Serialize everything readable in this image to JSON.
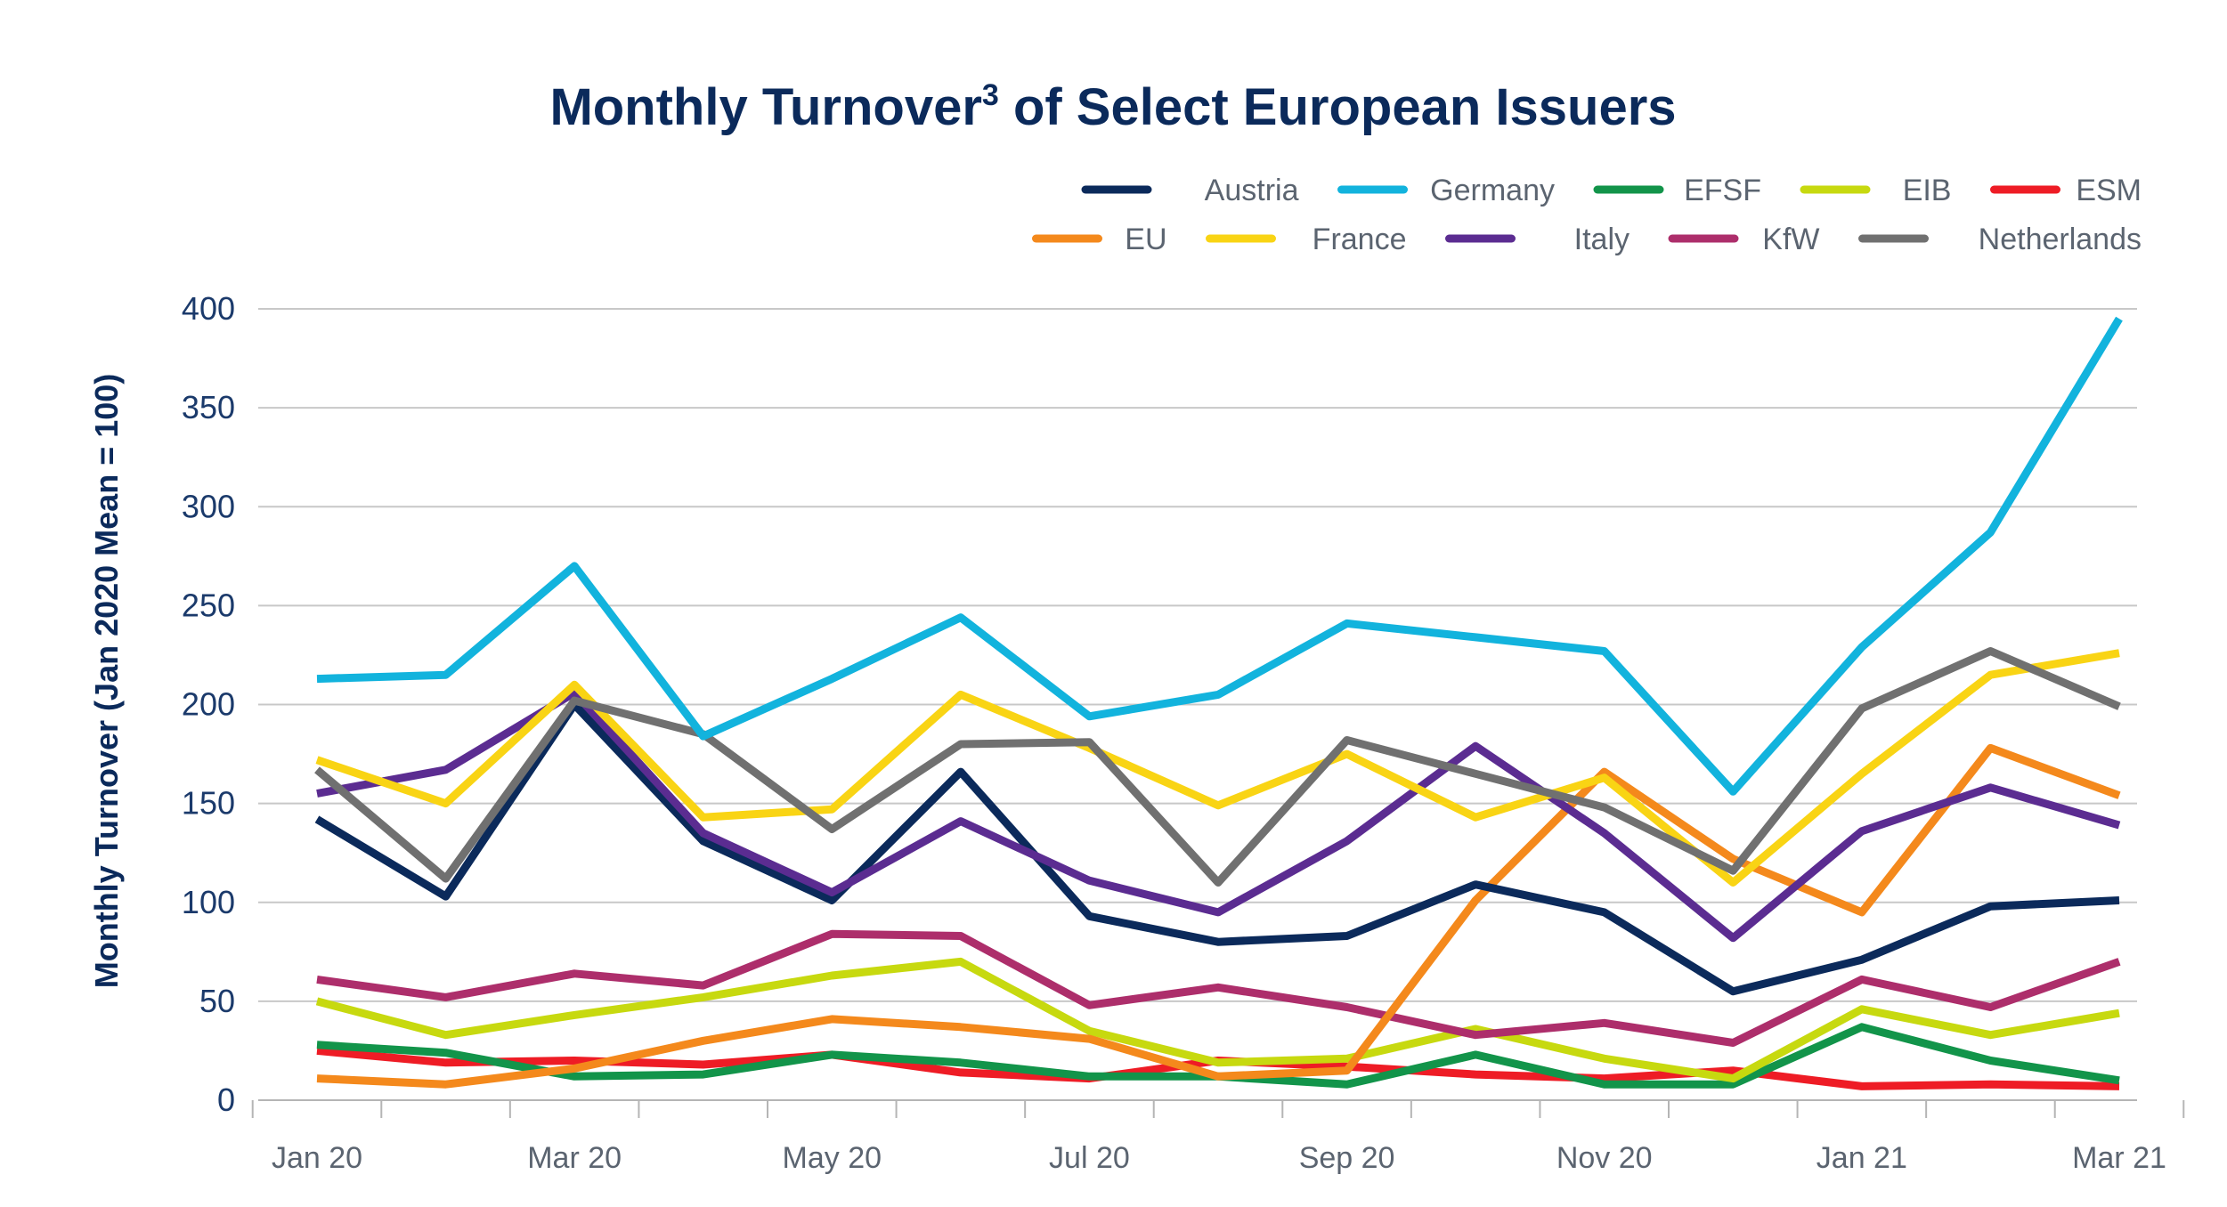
{
  "chart_data": {
    "type": "line",
    "title": "Monthly Turnover",
    "title_superscript": "3",
    "title_suffix": " of Select European Issuers",
    "xlabel": "",
    "ylabel": "Monthly Turnover (Jan 2020 Mean = 100)",
    "ylim": [
      0,
      400
    ],
    "yticks": [
      0,
      50,
      100,
      150,
      200,
      250,
      300,
      350,
      400
    ],
    "grid": true,
    "legend_position": "top-right",
    "x": [
      "Jan 20",
      "Feb 20",
      "Mar 20",
      "Apr 20",
      "May 20",
      "Jun 20",
      "Jul 20",
      "Aug 20",
      "Sep 20",
      "Oct 20",
      "Nov 20",
      "Dec 20",
      "Jan 21",
      "Feb 21",
      "Mar 21"
    ],
    "x_tick_labels": [
      {
        "index": 0,
        "label": "Jan 20"
      },
      {
        "index": 2,
        "label": "Mar 20"
      },
      {
        "index": 4,
        "label": "May 20"
      },
      {
        "index": 6,
        "label": "Jul 20"
      },
      {
        "index": 8,
        "label": "Sep 20"
      },
      {
        "index": 10,
        "label": "Nov 20"
      },
      {
        "index": 12,
        "label": "Jan 21"
      },
      {
        "index": 14,
        "label": "Mar 21"
      }
    ],
    "series": [
      {
        "name": "Germany",
        "color": "#12b3dd",
        "values": [
          213,
          215,
          270,
          184,
          213,
          244,
          194,
          205,
          241,
          234,
          227,
          156,
          229,
          287,
          395
        ]
      },
      {
        "name": "Netherlands",
        "color": "#707070",
        "values": [
          167,
          112,
          202,
          185,
          137,
          180,
          181,
          110,
          182,
          165,
          148,
          116,
          198,
          227,
          199
        ]
      },
      {
        "name": "France",
        "color": "#f9d414",
        "values": [
          172,
          150,
          210,
          143,
          147,
          205,
          178,
          149,
          175,
          143,
          163,
          110,
          165,
          215,
          226
        ]
      },
      {
        "name": "Italy",
        "color": "#5b2c91",
        "values": [
          155,
          167,
          206,
          135,
          105,
          141,
          111,
          95,
          131,
          179,
          135,
          82,
          136,
          158,
          139
        ]
      },
      {
        "name": "Austria",
        "color": "#0b2a5b",
        "values": [
          142,
          103,
          200,
          131,
          101,
          166,
          93,
          80,
          83,
          109,
          95,
          55,
          71,
          98,
          101
        ]
      },
      {
        "name": "EU",
        "color": "#f4891c",
        "values": [
          11,
          8,
          16,
          30,
          41,
          37,
          31,
          12,
          15,
          101,
          166,
          122,
          95,
          178,
          154
        ]
      },
      {
        "name": "KfW",
        "color": "#ad2e6b",
        "values": [
          61,
          52,
          64,
          58,
          84,
          83,
          48,
          57,
          47,
          33,
          39,
          29,
          61,
          47,
          70
        ]
      },
      {
        "name": "EIB",
        "color": "#c7d90f",
        "values": [
          50,
          33,
          43,
          52,
          63,
          70,
          35,
          19,
          21,
          36,
          21,
          11,
          46,
          33,
          44
        ]
      },
      {
        "name": "EFSF",
        "color": "#12944a",
        "values": [
          28,
          24,
          12,
          13,
          23,
          19,
          12,
          12,
          8,
          23,
          8,
          8,
          37,
          20,
          10
        ]
      },
      {
        "name": "ESM",
        "color": "#ee1c25",
        "values": [
          25,
          19,
          20,
          18,
          23,
          14,
          11,
          20,
          17,
          13,
          11,
          15,
          7,
          8,
          7
        ]
      }
    ],
    "legend": [
      [
        "Austria",
        "Germany",
        "EFSF",
        "EIB",
        "ESM"
      ],
      [
        "EU",
        "France",
        "Italy",
        "KfW",
        "Netherlands"
      ]
    ]
  }
}
